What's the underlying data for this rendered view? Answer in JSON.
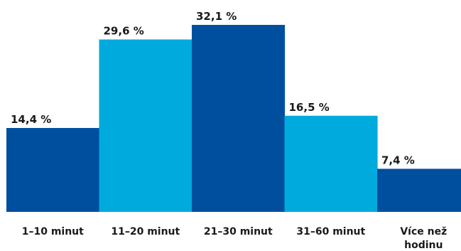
{
  "chart_data": {
    "type": "bar",
    "categories": [
      [
        "1–10 minut"
      ],
      [
        "11–20 minut"
      ],
      [
        "21–30 minut"
      ],
      [
        "31–60 minut"
      ],
      [
        "Více než",
        "hodinu"
      ]
    ],
    "values": [
      14.4,
      29.6,
      32.1,
      16.5,
      7.4
    ],
    "value_labels": [
      "14,4 %",
      "29,6 %",
      "32,1 %",
      "16,5 %",
      "7,4 %"
    ],
    "bar_colors": [
      "#004f9f",
      "#00aadc",
      "#004f9f",
      "#00aadc",
      "#004f9f"
    ],
    "ylim": [
      0,
      32.1
    ],
    "grid": false,
    "legend": "none",
    "title": "",
    "xlabel": "",
    "ylabel": ""
  }
}
